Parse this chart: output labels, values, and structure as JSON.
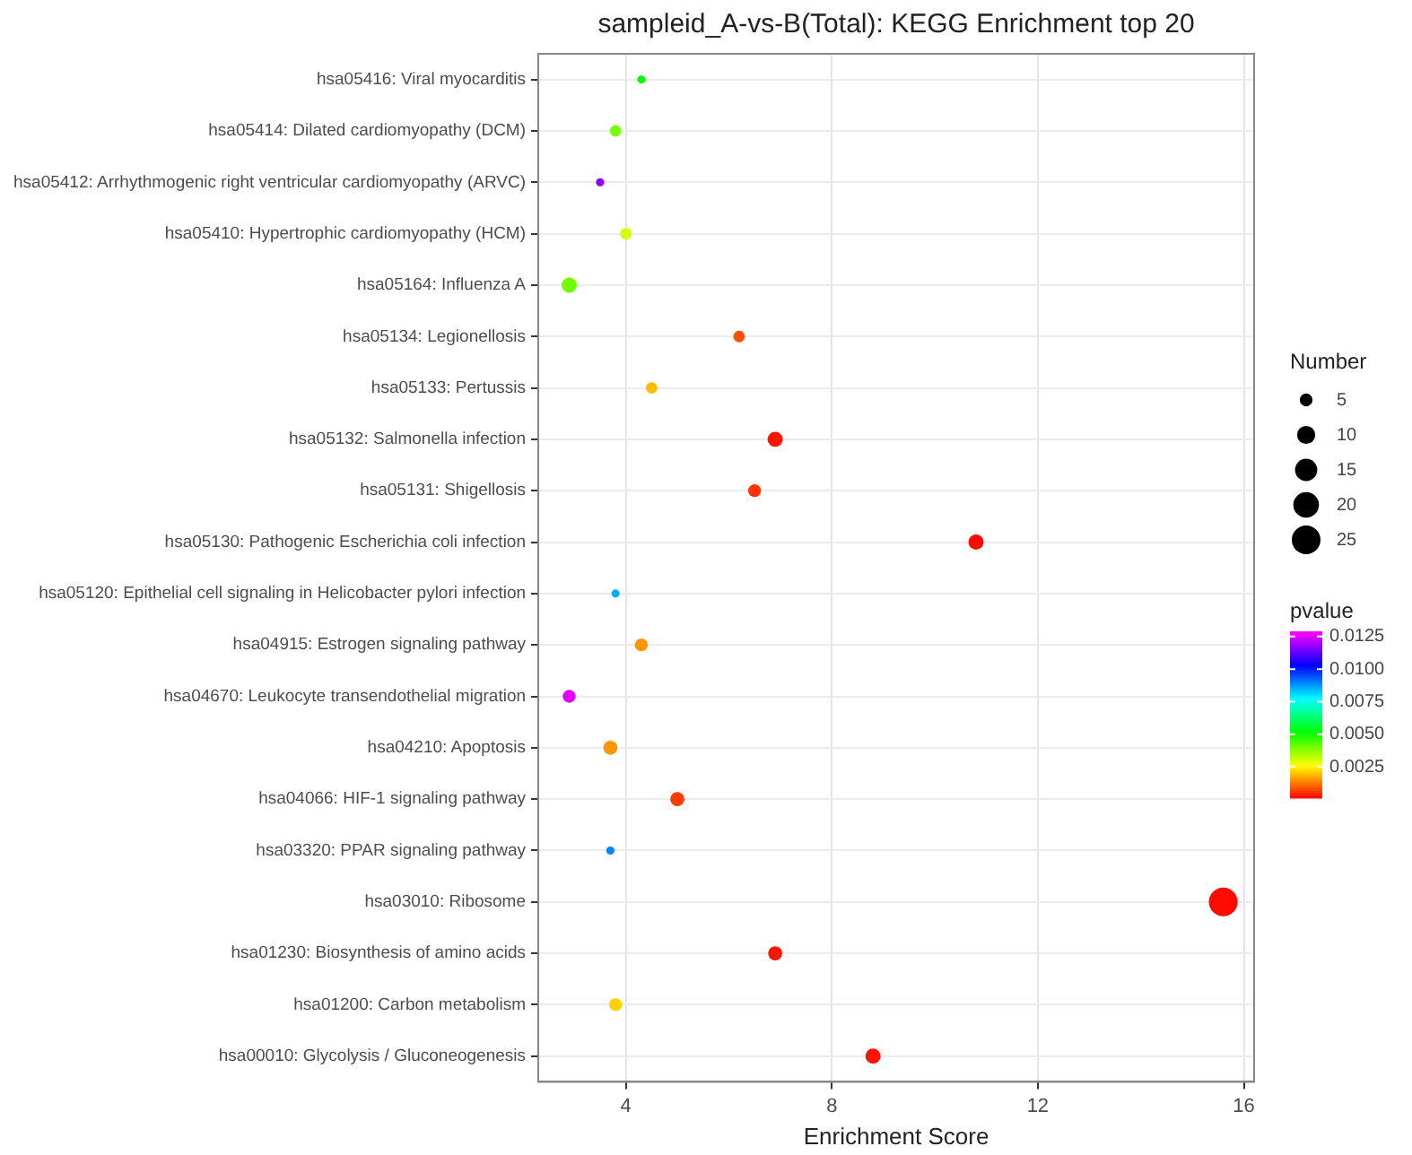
{
  "chart_data": {
    "type": "bubble",
    "orientation": "horizontal",
    "title": "sampleid_A-vs-B(Total): KEGG Enrichment top 20",
    "xlabel": "Enrichment Score",
    "legend_title": "Number",
    "clabel": "pvalue",
    "categories": [
      "hsa05416: Viral myocarditis",
      "hsa05414: Dilated cardiomyopathy (DCM)",
      "hsa05412: Arrhythmogenic right ventricular cardiomyopathy (ARVC)",
      "hsa05410: Hypertrophic cardiomyopathy (HCM)",
      "hsa05164: Influenza A",
      "hsa05134: Legionellosis",
      "hsa05133: Pertussis",
      "hsa05132: Salmonella infection",
      "hsa05131: Shigellosis",
      "hsa05130: Pathogenic Escherichia coli infection",
      "hsa05120: Epithelial cell signaling in Helicobacter pylori infection",
      "hsa04915: Estrogen signaling pathway",
      "hsa04670: Leukocyte transendothelial migration",
      "hsa04210: Apoptosis",
      "hsa04066: HIF-1 signaling pathway",
      "hsa03320: PPAR signaling pathway",
      "hsa03010: Ribosome",
      "hsa01230: Biosynthesis of amino acids",
      "hsa01200: Carbon metabolism",
      "hsa00010: Glycolysis / Gluconeogenesis"
    ],
    "values": [
      4.3,
      3.8,
      3.5,
      4.0,
      2.9,
      6.2,
      4.5,
      6.9,
      6.5,
      10.8,
      3.8,
      4.3,
      2.9,
      3.7,
      5.0,
      3.7,
      15.6,
      6.9,
      3.8,
      8.8
    ],
    "sizes": [
      2,
      4,
      2,
      4,
      7,
      4,
      4,
      7,
      5,
      7,
      2,
      5,
      5,
      6,
      6,
      2,
      25,
      6,
      5,
      7
    ],
    "cvalues": [
      0.0052,
      0.004,
      0.0118,
      0.0031,
      0.0041,
      0.0009,
      0.002,
      0.0003,
      0.0006,
      0.0002,
      0.0086,
      0.0016,
      0.0126,
      0.0016,
      0.0007,
      0.009,
      0.0002,
      0.0003,
      0.0022,
      0.0003
    ],
    "xlim": [
      2.3,
      16.2
    ],
    "xticks": [
      4,
      8,
      12,
      16
    ],
    "size_legend": [
      5,
      10,
      15,
      20,
      25
    ],
    "clim": [
      0.0001,
      0.0129
    ],
    "cticks": [
      {
        "value": 0.0025,
        "label": "0.0025"
      },
      {
        "value": 0.005,
        "label": "0.0050"
      },
      {
        "value": 0.0075,
        "label": "0.0075"
      },
      {
        "value": 0.01,
        "label": "0.0100"
      },
      {
        "value": 0.0125,
        "label": "0.0125"
      }
    ],
    "grid": true
  }
}
